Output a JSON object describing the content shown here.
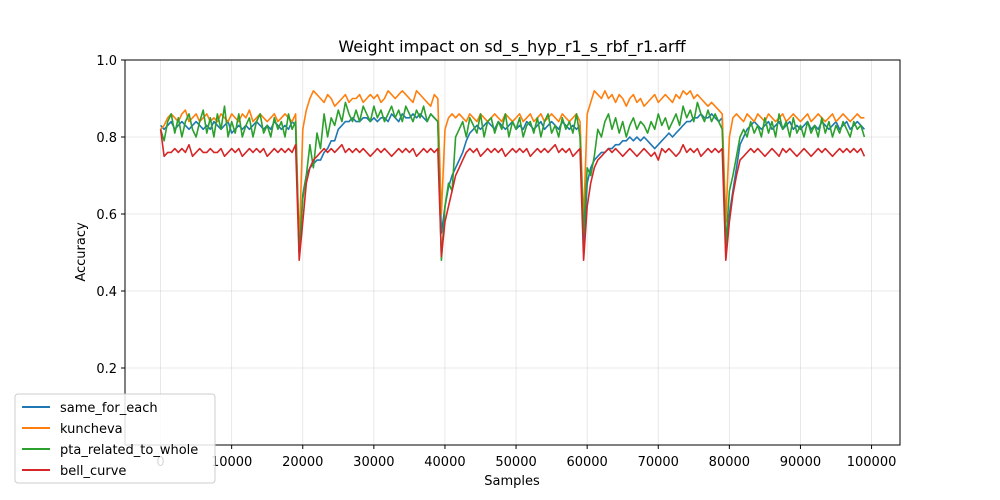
{
  "chart_data": {
    "type": "line",
    "title": "Weight impact on sd_s_hyp_r1_s_rbf_r1.arff",
    "xlabel": "Samples",
    "ylabel": "Accuracy",
    "xlim": [
      -5000,
      104000
    ],
    "ylim": [
      0.0,
      1.0
    ],
    "xticks": [
      0,
      10000,
      20000,
      30000,
      40000,
      50000,
      60000,
      70000,
      80000,
      90000,
      100000
    ],
    "yticks": [
      0.2,
      0.4,
      0.6,
      0.8,
      1.0
    ],
    "xtick_labels": [
      "0",
      "10000",
      "20000",
      "30000",
      "40000",
      "50000",
      "60000",
      "70000",
      "80000",
      "90000",
      "100000"
    ],
    "ytick_labels": [
      "0.2",
      "0.4",
      "0.6",
      "0.8",
      "1.0"
    ],
    "grid": true,
    "legend_position": "lower-left",
    "x": [
      0,
      500,
      1000,
      1500,
      2000,
      2500,
      3000,
      3500,
      4000,
      4500,
      5000,
      5500,
      6000,
      6500,
      7000,
      7500,
      8000,
      8500,
      9000,
      9500,
      10000,
      10500,
      11000,
      11500,
      12000,
      12500,
      13000,
      13500,
      14000,
      14500,
      15000,
      15500,
      16000,
      16500,
      17000,
      17500,
      18000,
      18500,
      19000,
      19500,
      20000,
      20500,
      21000,
      21500,
      22000,
      22500,
      23000,
      23500,
      24000,
      24500,
      25000,
      25500,
      26000,
      26500,
      27000,
      27500,
      28000,
      28500,
      29000,
      29500,
      30000,
      30500,
      31000,
      31500,
      32000,
      32500,
      33000,
      33500,
      34000,
      34500,
      35000,
      35500,
      36000,
      36500,
      37000,
      37500,
      38000,
      38500,
      39000,
      39500,
      40000,
      40500,
      41000,
      41500,
      42000,
      42500,
      43000,
      43500,
      44000,
      44500,
      45000,
      45500,
      46000,
      46500,
      47000,
      47500,
      48000,
      48500,
      49000,
      49500,
      50000,
      50500,
      51000,
      51500,
      52000,
      52500,
      53000,
      53500,
      54000,
      54500,
      55000,
      55500,
      56000,
      56500,
      57000,
      57500,
      58000,
      58500,
      59000,
      59500,
      60000,
      60500,
      61000,
      61500,
      62000,
      62500,
      63000,
      63500,
      64000,
      64500,
      65000,
      65500,
      66000,
      66500,
      67000,
      67500,
      68000,
      68500,
      69000,
      69500,
      70000,
      70500,
      71000,
      71500,
      72000,
      72500,
      73000,
      73500,
      74000,
      74500,
      75000,
      75500,
      76000,
      76500,
      77000,
      77500,
      78000,
      78500,
      79000,
      79500,
      80000,
      80500,
      81000,
      81500,
      82000,
      82500,
      83000,
      83500,
      84000,
      84500,
      85000,
      85500,
      86000,
      86500,
      87000,
      87500,
      88000,
      88500,
      89000,
      89500,
      90000,
      90500,
      91000,
      91500,
      92000,
      92500,
      93000,
      93500,
      94000,
      94500,
      95000,
      95500,
      96000,
      96500,
      97000,
      97500,
      98000,
      98500,
      99000
    ],
    "series": [
      {
        "name": "same_for_each",
        "color": "#1f77b4",
        "values": [
          0.83,
          0.82,
          0.83,
          0.84,
          0.82,
          0.83,
          0.84,
          0.83,
          0.82,
          0.83,
          0.84,
          0.83,
          0.82,
          0.83,
          0.82,
          0.84,
          0.83,
          0.82,
          0.83,
          0.84,
          0.81,
          0.82,
          0.83,
          0.82,
          0.83,
          0.82,
          0.83,
          0.84,
          0.83,
          0.82,
          0.83,
          0.82,
          0.84,
          0.83,
          0.82,
          0.83,
          0.82,
          0.84,
          0.83,
          0.5,
          0.65,
          0.7,
          0.72,
          0.73,
          0.74,
          0.74,
          0.76,
          0.77,
          0.79,
          0.79,
          0.82,
          0.83,
          0.84,
          0.84,
          0.85,
          0.84,
          0.84,
          0.85,
          0.85,
          0.84,
          0.85,
          0.84,
          0.85,
          0.85,
          0.84,
          0.86,
          0.85,
          0.84,
          0.86,
          0.85,
          0.85,
          0.86,
          0.85,
          0.86,
          0.85,
          0.84,
          0.86,
          0.85,
          0.84,
          0.55,
          0.62,
          0.67,
          0.7,
          0.72,
          0.74,
          0.76,
          0.79,
          0.81,
          0.82,
          0.83,
          0.82,
          0.83,
          0.84,
          0.83,
          0.82,
          0.84,
          0.83,
          0.82,
          0.83,
          0.84,
          0.82,
          0.83,
          0.82,
          0.84,
          0.83,
          0.82,
          0.83,
          0.84,
          0.82,
          0.83,
          0.84,
          0.83,
          0.82,
          0.84,
          0.83,
          0.82,
          0.83,
          0.82,
          0.83,
          0.52,
          0.68,
          0.72,
          0.74,
          0.75,
          0.76,
          0.76,
          0.77,
          0.77,
          0.78,
          0.78,
          0.79,
          0.79,
          0.8,
          0.79,
          0.8,
          0.79,
          0.8,
          0.79,
          0.78,
          0.77,
          0.78,
          0.79,
          0.8,
          0.81,
          0.8,
          0.81,
          0.82,
          0.83,
          0.84,
          0.84,
          0.85,
          0.85,
          0.86,
          0.85,
          0.85,
          0.86,
          0.85,
          0.84,
          0.85,
          0.5,
          0.6,
          0.66,
          0.72,
          0.78,
          0.8,
          0.82,
          0.83,
          0.84,
          0.83,
          0.82,
          0.83,
          0.84,
          0.82,
          0.83,
          0.84,
          0.82,
          0.83,
          0.84,
          0.82,
          0.83,
          0.82,
          0.83,
          0.84,
          0.82,
          0.83,
          0.82,
          0.84,
          0.83,
          0.82,
          0.83,
          0.84,
          0.82,
          0.83,
          0.84,
          0.82,
          0.83,
          0.84,
          0.83,
          0.82
        ]
      },
      {
        "name": "kuncheva",
        "color": "#ff7f0e",
        "values": [
          0.82,
          0.83,
          0.85,
          0.86,
          0.85,
          0.84,
          0.86,
          0.87,
          0.84,
          0.85,
          0.86,
          0.84,
          0.85,
          0.86,
          0.84,
          0.85,
          0.84,
          0.86,
          0.85,
          0.84,
          0.86,
          0.85,
          0.84,
          0.86,
          0.85,
          0.87,
          0.84,
          0.85,
          0.86,
          0.85,
          0.84,
          0.85,
          0.86,
          0.84,
          0.85,
          0.86,
          0.85,
          0.84,
          0.86,
          0.52,
          0.82,
          0.87,
          0.9,
          0.92,
          0.91,
          0.9,
          0.89,
          0.91,
          0.9,
          0.88,
          0.89,
          0.9,
          0.91,
          0.89,
          0.9,
          0.9,
          0.91,
          0.89,
          0.9,
          0.91,
          0.9,
          0.91,
          0.89,
          0.9,
          0.92,
          0.91,
          0.9,
          0.91,
          0.92,
          0.91,
          0.9,
          0.89,
          0.92,
          0.91,
          0.9,
          0.89,
          0.88,
          0.91,
          0.9,
          0.6,
          0.82,
          0.85,
          0.86,
          0.85,
          0.86,
          0.85,
          0.84,
          0.86,
          0.85,
          0.84,
          0.86,
          0.85,
          0.84,
          0.85,
          0.86,
          0.85,
          0.84,
          0.86,
          0.85,
          0.84,
          0.85,
          0.86,
          0.84,
          0.85,
          0.86,
          0.84,
          0.85,
          0.86,
          0.84,
          0.85,
          0.86,
          0.85,
          0.84,
          0.86,
          0.85,
          0.84,
          0.85,
          0.86,
          0.84,
          0.58,
          0.86,
          0.89,
          0.92,
          0.91,
          0.9,
          0.92,
          0.9,
          0.91,
          0.89,
          0.91,
          0.9,
          0.88,
          0.9,
          0.91,
          0.89,
          0.9,
          0.88,
          0.89,
          0.9,
          0.91,
          0.89,
          0.9,
          0.91,
          0.9,
          0.89,
          0.91,
          0.9,
          0.92,
          0.91,
          0.92,
          0.9,
          0.91,
          0.9,
          0.89,
          0.88,
          0.89,
          0.88,
          0.87,
          0.86,
          0.58,
          0.8,
          0.85,
          0.86,
          0.85,
          0.84,
          0.86,
          0.85,
          0.84,
          0.86,
          0.85,
          0.84,
          0.86,
          0.85,
          0.84,
          0.85,
          0.86,
          0.84,
          0.85,
          0.86,
          0.85,
          0.84,
          0.85,
          0.86,
          0.84,
          0.85,
          0.86,
          0.85,
          0.84,
          0.85,
          0.86,
          0.84,
          0.85,
          0.86,
          0.85,
          0.84,
          0.85,
          0.86,
          0.85,
          0.85
        ]
      },
      {
        "name": "pta_related_to_whole",
        "color": "#2ca02c",
        "values": [
          0.82,
          0.79,
          0.84,
          0.86,
          0.81,
          0.85,
          0.8,
          0.84,
          0.86,
          0.82,
          0.8,
          0.84,
          0.87,
          0.81,
          0.85,
          0.8,
          0.86,
          0.82,
          0.88,
          0.8,
          0.84,
          0.81,
          0.86,
          0.8,
          0.83,
          0.85,
          0.8,
          0.84,
          0.86,
          0.81,
          0.83,
          0.8,
          0.85,
          0.82,
          0.84,
          0.8,
          0.86,
          0.82,
          0.84,
          0.5,
          0.64,
          0.7,
          0.78,
          0.72,
          0.81,
          0.77,
          0.86,
          0.8,
          0.85,
          0.83,
          0.87,
          0.84,
          0.89,
          0.86,
          0.84,
          0.87,
          0.84,
          0.88,
          0.86,
          0.84,
          0.88,
          0.85,
          0.87,
          0.84,
          0.86,
          0.88,
          0.85,
          0.87,
          0.84,
          0.88,
          0.86,
          0.84,
          0.87,
          0.85,
          0.88,
          0.84,
          0.86,
          0.85,
          0.84,
          0.48,
          0.62,
          0.68,
          0.66,
          0.8,
          0.82,
          0.84,
          0.8,
          0.85,
          0.83,
          0.81,
          0.86,
          0.8,
          0.84,
          0.85,
          0.81,
          0.84,
          0.82,
          0.86,
          0.8,
          0.84,
          0.82,
          0.85,
          0.8,
          0.83,
          0.84,
          0.81,
          0.85,
          0.8,
          0.84,
          0.86,
          0.81,
          0.83,
          0.8,
          0.85,
          0.82,
          0.84,
          0.81,
          0.86,
          0.8,
          0.55,
          0.72,
          0.7,
          0.75,
          0.82,
          0.8,
          0.84,
          0.86,
          0.82,
          0.85,
          0.81,
          0.84,
          0.8,
          0.83,
          0.85,
          0.82,
          0.84,
          0.83,
          0.81,
          0.84,
          0.82,
          0.86,
          0.83,
          0.85,
          0.82,
          0.84,
          0.86,
          0.83,
          0.88,
          0.85,
          0.87,
          0.84,
          0.89,
          0.86,
          0.84,
          0.87,
          0.84,
          0.86,
          0.84,
          0.82,
          0.52,
          0.66,
          0.7,
          0.75,
          0.8,
          0.82,
          0.8,
          0.84,
          0.81,
          0.83,
          0.8,
          0.85,
          0.81,
          0.84,
          0.8,
          0.86,
          0.82,
          0.84,
          0.8,
          0.85,
          0.81,
          0.83,
          0.8,
          0.84,
          0.81,
          0.83,
          0.8,
          0.85,
          0.81,
          0.84,
          0.8,
          0.83,
          0.81,
          0.84,
          0.82,
          0.8,
          0.84,
          0.82,
          0.83,
          0.8
        ]
      },
      {
        "name": "bell_curve",
        "color": "#d62728",
        "values": [
          0.82,
          0.75,
          0.76,
          0.76,
          0.77,
          0.76,
          0.77,
          0.76,
          0.78,
          0.75,
          0.76,
          0.77,
          0.76,
          0.76,
          0.77,
          0.76,
          0.76,
          0.77,
          0.75,
          0.76,
          0.77,
          0.76,
          0.77,
          0.75,
          0.76,
          0.77,
          0.76,
          0.77,
          0.76,
          0.77,
          0.75,
          0.76,
          0.77,
          0.76,
          0.77,
          0.76,
          0.77,
          0.76,
          0.78,
          0.48,
          0.58,
          0.68,
          0.72,
          0.74,
          0.75,
          0.76,
          0.77,
          0.76,
          0.77,
          0.76,
          0.77,
          0.78,
          0.76,
          0.77,
          0.76,
          0.77,
          0.76,
          0.77,
          0.76,
          0.75,
          0.76,
          0.77,
          0.76,
          0.77,
          0.76,
          0.75,
          0.76,
          0.77,
          0.76,
          0.77,
          0.76,
          0.77,
          0.75,
          0.76,
          0.77,
          0.76,
          0.77,
          0.76,
          0.77,
          0.49,
          0.58,
          0.62,
          0.66,
          0.7,
          0.72,
          0.74,
          0.76,
          0.77,
          0.76,
          0.77,
          0.75,
          0.76,
          0.77,
          0.76,
          0.77,
          0.76,
          0.77,
          0.75,
          0.76,
          0.77,
          0.76,
          0.77,
          0.76,
          0.77,
          0.75,
          0.76,
          0.77,
          0.76,
          0.77,
          0.76,
          0.77,
          0.78,
          0.76,
          0.77,
          0.76,
          0.77,
          0.75,
          0.76,
          0.77,
          0.48,
          0.62,
          0.68,
          0.72,
          0.74,
          0.75,
          0.76,
          0.77,
          0.76,
          0.77,
          0.76,
          0.75,
          0.76,
          0.77,
          0.76,
          0.75,
          0.76,
          0.77,
          0.76,
          0.75,
          0.76,
          0.74,
          0.77,
          0.76,
          0.77,
          0.76,
          0.75,
          0.76,
          0.78,
          0.76,
          0.77,
          0.76,
          0.77,
          0.75,
          0.76,
          0.77,
          0.76,
          0.77,
          0.76,
          0.77,
          0.48,
          0.58,
          0.65,
          0.7,
          0.74,
          0.75,
          0.76,
          0.77,
          0.76,
          0.77,
          0.76,
          0.75,
          0.76,
          0.77,
          0.76,
          0.75,
          0.77,
          0.76,
          0.77,
          0.76,
          0.75,
          0.76,
          0.77,
          0.76,
          0.75,
          0.76,
          0.77,
          0.76,
          0.77,
          0.76,
          0.75,
          0.76,
          0.77,
          0.76,
          0.77,
          0.76,
          0.77,
          0.76,
          0.77,
          0.75
        ]
      }
    ]
  }
}
